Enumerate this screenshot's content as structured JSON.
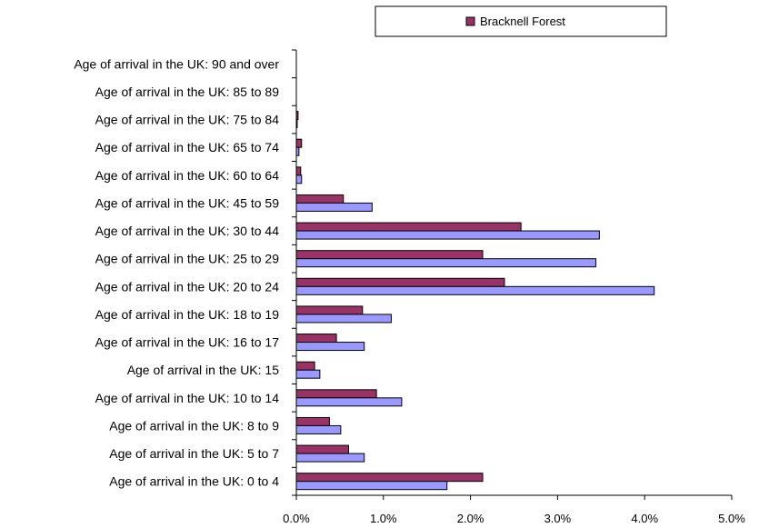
{
  "chart_data": {
    "type": "bar",
    "orientation": "horizontal",
    "categories": [
      "Age of arrival in the UK: 0 to 4",
      "Age of arrival in the UK: 5 to 7",
      "Age of arrival in the UK: 8 to 9",
      "Age of arrival in the UK: 10 to 14",
      "Age of arrival in the UK: 15",
      "Age of arrival in the UK: 16 to 17",
      "Age of arrival in the UK: 18 to 19",
      "Age of arrival in the UK: 20 to 24",
      "Age of arrival in the UK: 25 to 29",
      "Age of arrival in the UK: 30 to 44",
      "Age of arrival in the UK: 45 to 59",
      "Age of arrival in the UK: 60 to 64",
      "Age of arrival in the UK: 65 to 74",
      "Age of arrival in the UK: 75 to 84",
      "Age of arrival in the UK: 85 to 89",
      "Age of arrival in the UK: 90 and over"
    ],
    "series": [
      {
        "name": "Bracknell Forest",
        "color": "#993366",
        "values": [
          2.14,
          0.6,
          0.38,
          0.92,
          0.21,
          0.46,
          0.76,
          2.39,
          2.14,
          2.58,
          0.54,
          0.05,
          0.06,
          0.02,
          0.0,
          0.0
        ]
      },
      {
        "color": "#9999ff",
        "values": [
          1.73,
          0.78,
          0.51,
          1.21,
          0.27,
          0.78,
          1.09,
          4.11,
          3.44,
          3.48,
          0.87,
          0.06,
          0.03,
          0.01,
          0.0,
          0.0
        ]
      }
    ],
    "xlim": [
      0,
      5
    ],
    "x_ticks": [
      "0.0%",
      "1.0%",
      "2.0%",
      "3.0%",
      "4.0%",
      "5.0%"
    ],
    "grid": false,
    "legend": {
      "position": "top-right",
      "entries": [
        "Bracknell Forest"
      ]
    }
  }
}
